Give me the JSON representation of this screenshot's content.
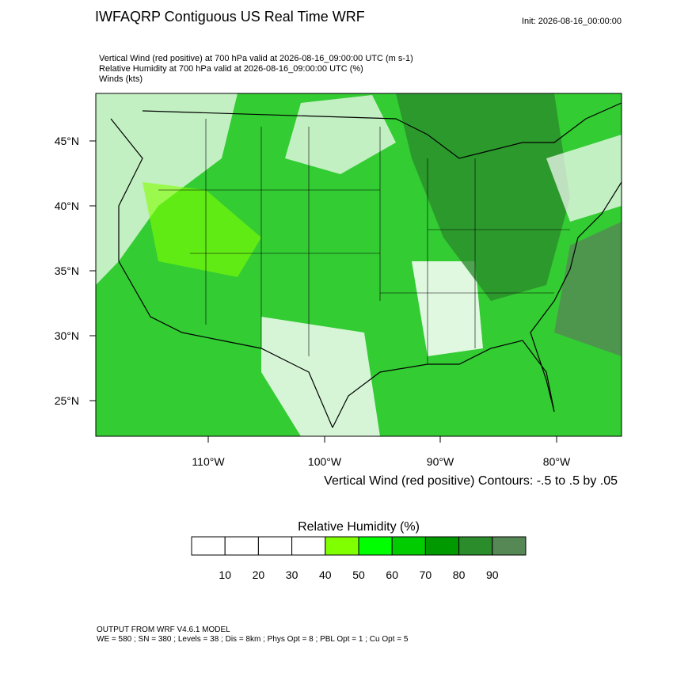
{
  "header": {
    "title": "IWFAQRP Contiguous US Real Time WRF",
    "init": "Init: 2026-08-16_00:00:00",
    "fields": [
      "Vertical Wind (red positive) at 700 hPa valid at 2026-08-16_09:00:00 UTC   (m s-1)",
      "Relative Humidity at 700 hPa valid at 2026-08-16_09:00:00 UTC   (%)",
      "Winds   (kts)"
    ]
  },
  "map": {
    "lat_labels": [
      "45°N",
      "40°N",
      "35°N",
      "30°N",
      "25°N"
    ],
    "lon_labels": [
      "110°W",
      "100°W",
      "90°W",
      "80°W"
    ],
    "contour_note": "Vertical Wind (red positive) Contours: -.5 to .5 by .05"
  },
  "colorbar": {
    "title": "Relative Humidity  (%)",
    "colors": [
      "#ffffff",
      "#ffffff",
      "#ffffff",
      "#ffffff",
      "#80ff00",
      "#00ff00",
      "#00cc00",
      "#009900",
      "#2a8c2a",
      "#558855"
    ],
    "labels": [
      "10",
      "20",
      "30",
      "40",
      "50",
      "60",
      "70",
      "80",
      "90"
    ]
  },
  "footer": [
    "OUTPUT FROM WRF V4.6.1 MODEL",
    "WE = 580 ; SN = 380 ; Levels = 38 ; Dis = 8km ; Phys Opt = 8 ; PBL Opt = 1 ; Cu Opt = 5"
  ]
}
